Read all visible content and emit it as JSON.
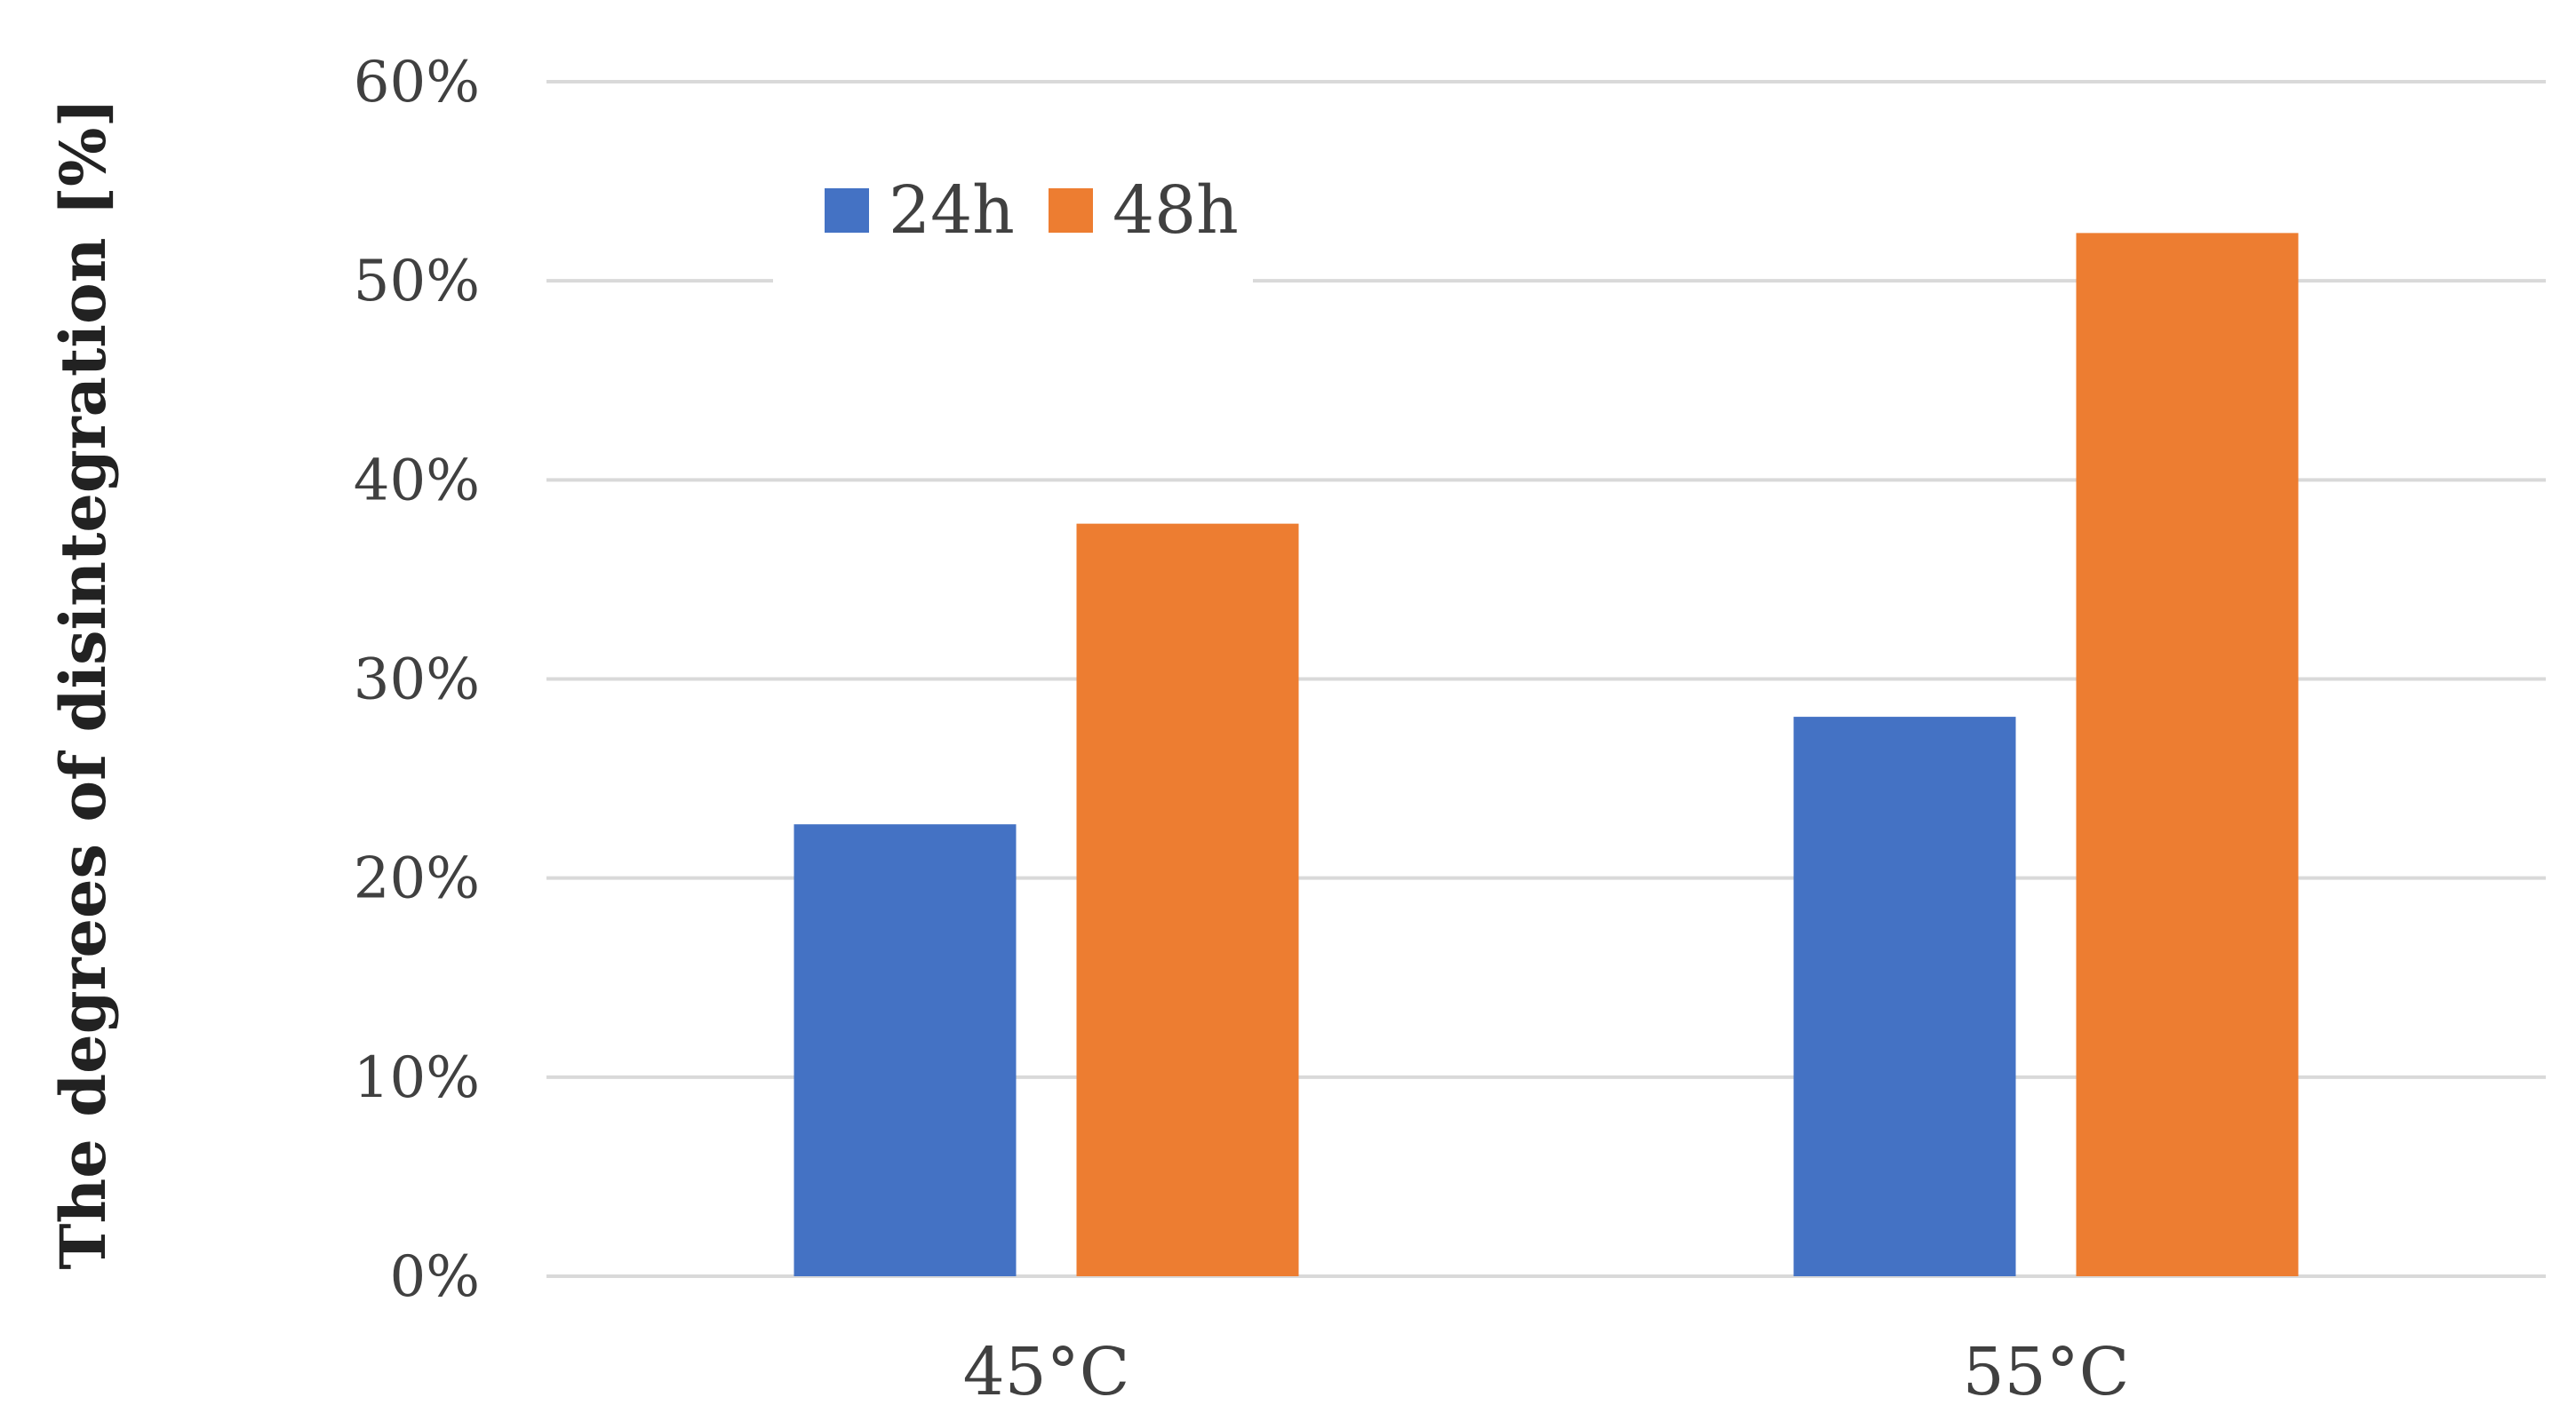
{
  "chart_data": {
    "type": "bar",
    "categories": [
      "45°C",
      "55°C"
    ],
    "series": [
      {
        "name": "24h",
        "values": [
          22.7,
          28.1
        ],
        "color": "#4472C4"
      },
      {
        "name": "48h",
        "values": [
          37.8,
          52.4
        ],
        "color": "#ED7D31"
      }
    ],
    "ylabel": "The degrees of disintegration [%]",
    "xlabel": "",
    "ylim": [
      0,
      60
    ],
    "y_ticks": [
      0,
      10,
      20,
      30,
      40,
      50,
      60
    ],
    "y_tick_format": "percent",
    "grid": true,
    "grid_color": "#D9D9D9",
    "legend_position": "top-left"
  }
}
